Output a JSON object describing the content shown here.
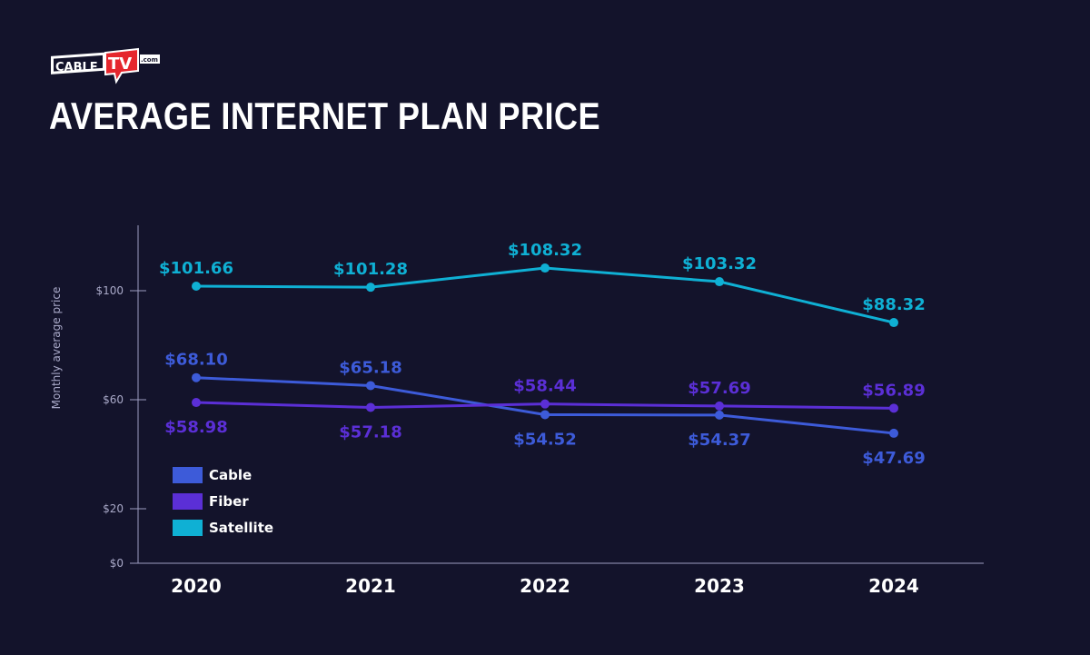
{
  "logo": {
    "text_main": "CABLE",
    "text_accent": "TV",
    "text_suffix": ".com"
  },
  "title": "AVERAGE INTERNET PLAN PRICE",
  "colors": {
    "background": "#13132b",
    "cable": "#3d5bd9",
    "fiber": "#5b2fd6",
    "satellite": "#0fb0d4",
    "logo_red": "#e5262d"
  },
  "chart_data": {
    "type": "line",
    "title": "AVERAGE INTERNET PLAN PRICE",
    "xlabel": "",
    "ylabel": "Monthly average price",
    "categories": [
      "2020",
      "2021",
      "2022",
      "2023",
      "2024"
    ],
    "ylim": [
      0,
      124
    ],
    "yticks": [
      0,
      20,
      60,
      100
    ],
    "ytick_labels": [
      "$0",
      "$20",
      "$60",
      "$100"
    ],
    "grid": false,
    "legend_placement": "bottom-left",
    "series": [
      {
        "name": "Cable",
        "color": "#3d5bd9",
        "values": [
          68.1,
          65.18,
          54.52,
          54.37,
          47.69
        ],
        "labels": [
          "$68.10",
          "$65.18",
          "$54.52",
          "$54.37",
          "$47.69"
        ],
        "label_pos": [
          "above",
          "above",
          "below",
          "below",
          "below"
        ]
      },
      {
        "name": "Fiber",
        "color": "#5b2fd6",
        "values": [
          58.98,
          57.18,
          58.44,
          57.69,
          56.89
        ],
        "labels": [
          "$58.98",
          "$57.18",
          "$58.44",
          "$57.69",
          "$56.89"
        ],
        "label_pos": [
          "below",
          "below",
          "above",
          "above",
          "above"
        ]
      },
      {
        "name": "Satellite",
        "color": "#0fb0d4",
        "values": [
          101.66,
          101.28,
          108.32,
          103.32,
          88.32
        ],
        "labels": [
          "$101.66",
          "$101.28",
          "$108.32",
          "$103.32",
          "$88.32"
        ],
        "label_pos": [
          "above",
          "above",
          "above",
          "above",
          "above"
        ]
      }
    ]
  }
}
